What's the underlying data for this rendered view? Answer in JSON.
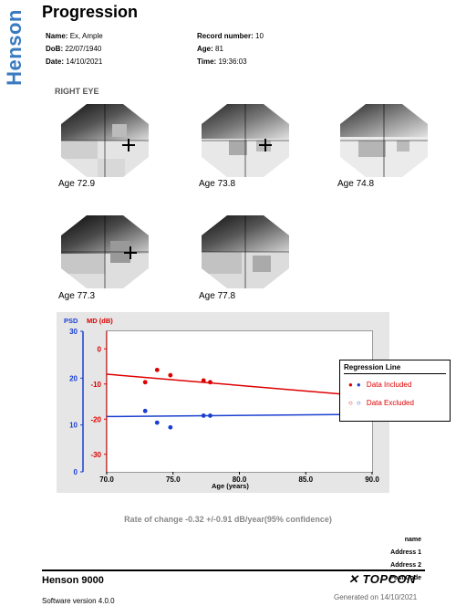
{
  "brand": "Henson",
  "title": "Progression",
  "patient": {
    "name_label": "Name:",
    "name_value": "Ex,  Ample",
    "dob_label": "DoB:",
    "dob_value": "22/07/1940",
    "date_label": "Date:",
    "date_value": "14/10/2021",
    "record_label": "Record number:",
    "record_value": "10",
    "age_label": "Age:",
    "age_value": "81",
    "time_label": "Time:",
    "time_value": "19:36:03"
  },
  "eye_label": "RIGHT EYE",
  "fields": [
    {
      "label": "Age 72.9"
    },
    {
      "label": "Age 73.8"
    },
    {
      "label": "Age 74.8"
    },
    {
      "label": "Age 77.3"
    },
    {
      "label": "Age 77.8"
    }
  ],
  "chart_data": {
    "type": "scatter",
    "psd_axis": {
      "label": "PSD",
      "ticks": [
        "30",
        "20",
        "10",
        "0"
      ],
      "range": [
        0,
        30
      ],
      "color": "#1a3fd0"
    },
    "md_axis": {
      "label": "MD (dB)",
      "ticks": [
        "0",
        "-10",
        "-20",
        "-30"
      ],
      "range": [
        -35,
        5
      ],
      "color": "#dd0000"
    },
    "x_axis": {
      "label": "Age (years)",
      "ticks": [
        "70.0",
        "75.0",
        "80.0",
        "85.0",
        "90.0"
      ],
      "range": [
        70,
        90
      ]
    },
    "md_points": [
      {
        "x": 72.9,
        "y": -9.5
      },
      {
        "x": 73.8,
        "y": -6.0
      },
      {
        "x": 74.8,
        "y": -7.5
      },
      {
        "x": 77.3,
        "y": -9.0
      },
      {
        "x": 77.8,
        "y": -9.5
      }
    ],
    "psd_points": [
      {
        "x": 72.9,
        "y": 13.0
      },
      {
        "x": 73.8,
        "y": 10.5
      },
      {
        "x": 74.8,
        "y": 9.5
      },
      {
        "x": 77.3,
        "y": 12.0
      },
      {
        "x": 77.8,
        "y": 12.0
      }
    ],
    "md_regression": {
      "x": [
        70,
        90
      ],
      "y": [
        -7.2,
        -13.6
      ]
    },
    "psd_regression": {
      "x": [
        70,
        90
      ],
      "y": [
        11.8,
        12.3
      ]
    },
    "legend": {
      "title": "Regression Line",
      "included": "Data Included",
      "excluded": "Data Excluded"
    }
  },
  "rate_text": "Rate of change -0.32 +/-0.91 dB/year(95% confidence)",
  "address": [
    "name",
    "Address 1",
    "Address 2",
    "Post Code"
  ],
  "footer": {
    "model": "Henson 9000",
    "software": "Software version 4.0.0",
    "logo": "TOPCON",
    "generated": "Generated on 14/10/2021"
  },
  "colors": {
    "brand": "#3a7bbf",
    "md": "#dd0000",
    "psd": "#1a3fd0"
  }
}
